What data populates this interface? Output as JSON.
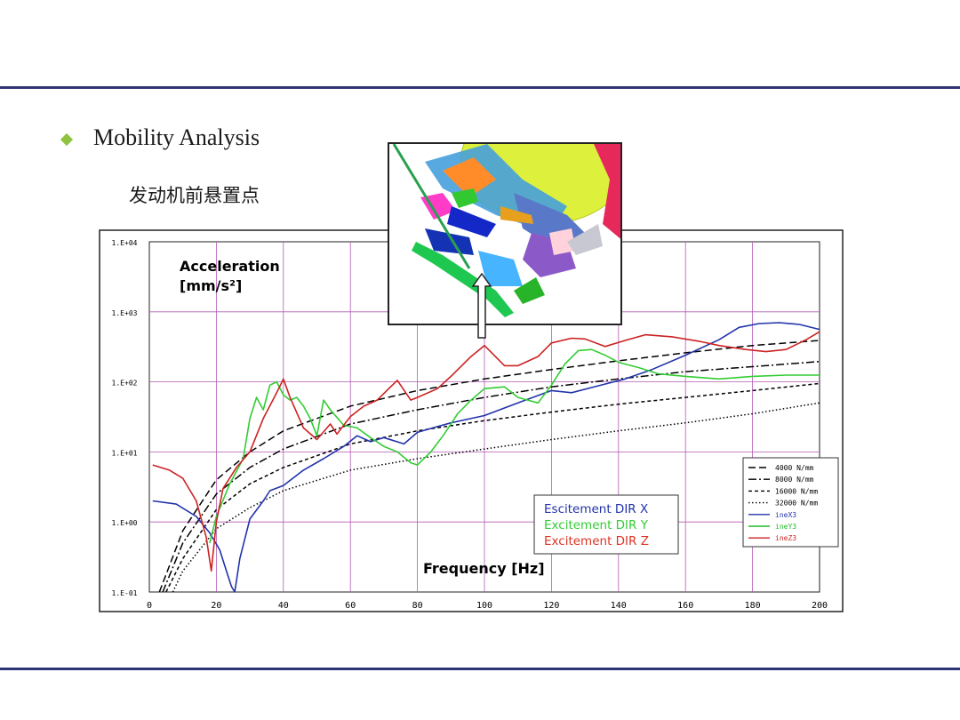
{
  "slide": {
    "bullet_title": "Mobility Analysis",
    "subtitle": "发动机前悬置点"
  },
  "chart_data": {
    "type": "line",
    "title": "",
    "xlabel": "Frequency [Hz]",
    "ylabel_line1": "Acceleration",
    "ylabel_line2": "[mm/s²]",
    "x_scale": "linear",
    "y_scale": "log",
    "xlim": [
      0,
      200
    ],
    "ylim": [
      0.1,
      10000
    ],
    "x_ticks": [
      0,
      20,
      40,
      60,
      80,
      100,
      120,
      140,
      160,
      180,
      200
    ],
    "x_tick_labels": [
      "0",
      "20",
      "40",
      "60",
      "80",
      "100",
      "120",
      "140",
      "160",
      "180",
      "200"
    ],
    "y_ticks": [
      0.1,
      1,
      10,
      100,
      1000,
      10000
    ],
    "y_tick_labels": [
      "1.E-01",
      "1.E+00",
      "1.E+01",
      "1.E+02",
      "1.E+03",
      "1.E+04"
    ],
    "grid": true,
    "grid_color": "#b45ab4",
    "legend_right_position": "bottom-right",
    "legend_right": [
      {
        "label": "4000 N/mm",
        "color": "#000000",
        "dash": "dash"
      },
      {
        "label": "8000 N/mm",
        "color": "#000000",
        "dash": "dashdot"
      },
      {
        "label": "16000 N/mm",
        "color": "#000000",
        "dash": "shortdash"
      },
      {
        "label": "32000 N/mm",
        "color": "#000000",
        "dash": "dot"
      },
      {
        "label": "ineX3",
        "color": "#2233aa",
        "dash": "solid"
      },
      {
        "label": "ineY3",
        "color": "#22bb22",
        "dash": "solid"
      },
      {
        "label": "ineZ3",
        "color": "#cc2222",
        "dash": "solid"
      }
    ],
    "legend_center": [
      {
        "label": "Escitement DIR X",
        "color": "#2233aa"
      },
      {
        "label": "Excitement DIR Y",
        "color": "#33cc33"
      },
      {
        "label": "Excitement DIR Z",
        "color": "#dd3322"
      }
    ],
    "series": [
      {
        "name": "4000 N/mm",
        "color": "#000000",
        "dash": "dash",
        "x": [
          3,
          10,
          20,
          30,
          40,
          60,
          80,
          100,
          120,
          140,
          160,
          180,
          200
        ],
        "y": [
          0.1,
          0.75,
          4.0,
          10,
          20,
          45,
          75,
          110,
          150,
          200,
          260,
          330,
          390
        ]
      },
      {
        "name": "8000 N/mm",
        "color": "#000000",
        "dash": "dashdot",
        "x": [
          4,
          10,
          20,
          30,
          40,
          60,
          80,
          100,
          120,
          140,
          160,
          180,
          200
        ],
        "y": [
          0.1,
          0.5,
          2.5,
          6,
          11,
          25,
          40,
          60,
          85,
          110,
          140,
          165,
          195
        ]
      },
      {
        "name": "16000 N/mm",
        "color": "#000000",
        "dash": "shortdash",
        "x": [
          5,
          10,
          20,
          30,
          40,
          60,
          80,
          100,
          120,
          140,
          160,
          180,
          200
        ],
        "y": [
          0.1,
          0.3,
          1.5,
          3.5,
          6,
          13,
          20,
          28,
          37,
          48,
          60,
          75,
          95
        ]
      },
      {
        "name": "32000 N/mm",
        "color": "#000000",
        "dash": "dot",
        "x": [
          7,
          10,
          20,
          30,
          40,
          60,
          80,
          100,
          120,
          140,
          160,
          180,
          200
        ],
        "y": [
          0.1,
          0.2,
          0.8,
          1.6,
          2.8,
          5.5,
          8,
          11,
          15,
          20,
          26,
          35,
          50
        ]
      },
      {
        "name": "ineX3",
        "color": "#2233aa",
        "dash": "solid",
        "x": [
          1,
          8,
          14,
          18,
          21,
          23,
          24.5,
          25.5,
          27,
          30,
          34,
          36,
          40,
          46,
          52,
          58,
          62,
          66,
          70,
          76,
          80,
          86,
          90,
          100,
          110,
          120,
          126,
          134,
          142,
          150,
          160,
          170,
          176,
          182,
          188,
          194,
          200
        ],
        "y": [
          2.0,
          1.8,
          1.2,
          0.7,
          0.4,
          0.2,
          0.12,
          0.1,
          0.3,
          1.1,
          2.0,
          2.8,
          3.3,
          5.5,
          8,
          12,
          17,
          14,
          16,
          13,
          19,
          23,
          26,
          33,
          50,
          75,
          70,
          88,
          110,
          150,
          240,
          400,
          600,
          680,
          700,
          660,
          560
        ]
      },
      {
        "name": "ineY3",
        "color": "#33cc33",
        "dash": "solid",
        "x": [
          18,
          20,
          24,
          28,
          30,
          32,
          34,
          36,
          38,
          40,
          42,
          44,
          46,
          48,
          50,
          52,
          54,
          58,
          62,
          66,
          70,
          74,
          78,
          80,
          84,
          88,
          92,
          96,
          100,
          106,
          110,
          116,
          120,
          124,
          128,
          132,
          136,
          140,
          146,
          152,
          160,
          170,
          180,
          190,
          200
        ],
        "y": [
          0.5,
          1.2,
          3.5,
          8,
          30,
          60,
          40,
          90,
          100,
          65,
          55,
          60,
          45,
          30,
          17,
          55,
          40,
          24,
          22,
          16,
          12,
          10,
          7,
          6.5,
          10,
          18,
          35,
          55,
          80,
          85,
          60,
          50,
          90,
          180,
          280,
          290,
          240,
          190,
          160,
          130,
          120,
          110,
          120,
          125,
          125
        ]
      },
      {
        "name": "ineZ3",
        "color": "#cc2222",
        "dash": "solid",
        "x": [
          1,
          6,
          10,
          14,
          17,
          18.5,
          20,
          22,
          26,
          30,
          34,
          38,
          40,
          42,
          46,
          50,
          54,
          56,
          60,
          64,
          68,
          72,
          74,
          78,
          80,
          86,
          90,
          96,
          100,
          106,
          110,
          116,
          120,
          126,
          130,
          136,
          142,
          148,
          156,
          164,
          170,
          178,
          184,
          190,
          196,
          200
        ],
        "y": [
          6.5,
          5.5,
          4.2,
          2.0,
          0.6,
          0.2,
          1.0,
          3.0,
          6.0,
          10,
          30,
          70,
          110,
          60,
          22,
          15,
          25,
          18,
          32,
          45,
          55,
          85,
          105,
          55,
          60,
          80,
          120,
          230,
          330,
          170,
          170,
          230,
          360,
          420,
          410,
          320,
          390,
          470,
          440,
          380,
          330,
          290,
          270,
          290,
          400,
          520
        ]
      }
    ]
  }
}
